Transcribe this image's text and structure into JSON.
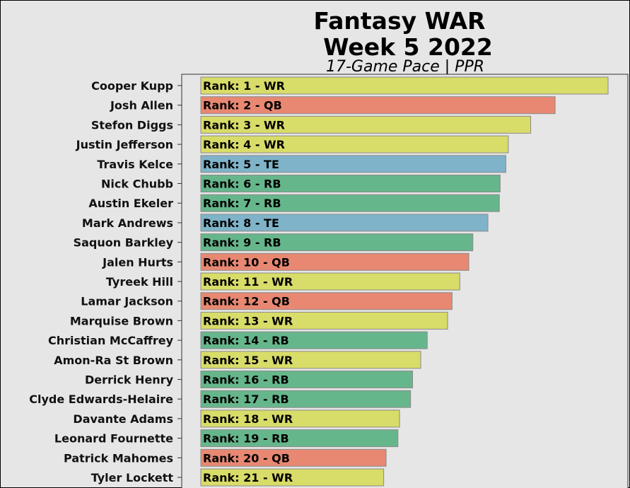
{
  "chart_data": {
    "type": "bar",
    "orientation": "horizontal",
    "title_lines": [
      "Fantasy WAR",
      "Week 5 2022"
    ],
    "subtitle": "17-Game Pace | PPR",
    "xlabel": "",
    "ylabel": "",
    "xlim": [
      0,
      1
    ],
    "grid": false,
    "legend": "none",
    "position_colors": {
      "WR": "#d8dc68",
      "QB": "#e88872",
      "TE": "#7fb3c9",
      "RB": "#66b68c"
    },
    "categories": [
      "Cooper Kupp",
      "Josh Allen",
      "Stefon Diggs",
      "Justin Jefferson",
      "Travis Kelce",
      "Nick Chubb",
      "Austin Ekeler",
      "Mark Andrews",
      "Saquon Barkley",
      "Jalen Hurts",
      "Tyreek Hill",
      "Lamar Jackson",
      "Marquise Brown",
      "Christian McCaffrey",
      "Amon-Ra St Brown",
      "Derrick Henry",
      "Clyde Edwards-Helaire",
      "Davante Adams",
      "Leonard Fournette",
      "Patrick Mahomes",
      "Tyler Lockett"
    ],
    "values": [
      1.0,
      0.87,
      0.81,
      0.755,
      0.749,
      0.735,
      0.733,
      0.705,
      0.668,
      0.658,
      0.636,
      0.617,
      0.606,
      0.556,
      0.54,
      0.52,
      0.515,
      0.488,
      0.484,
      0.455,
      0.449
    ],
    "bar_labels": [
      "Rank: 1 - WR",
      "Rank: 2 - QB",
      "Rank: 3 - WR",
      "Rank: 4 - WR",
      "Rank: 5 - TE",
      "Rank: 6 - RB",
      "Rank: 7 - RB",
      "Rank: 8 - TE",
      "Rank: 9 - RB",
      "Rank: 10 - QB",
      "Rank: 11 - WR",
      "Rank: 12 - QB",
      "Rank: 13 - WR",
      "Rank: 14 - RB",
      "Rank: 15 - WR",
      "Rank: 16 - RB",
      "Rank: 17 - RB",
      "Rank: 18 - WR",
      "Rank: 19 - RB",
      "Rank: 20 - QB",
      "Rank: 21 - WR"
    ],
    "positions": [
      "WR",
      "QB",
      "WR",
      "WR",
      "TE",
      "RB",
      "RB",
      "TE",
      "RB",
      "QB",
      "WR",
      "QB",
      "WR",
      "RB",
      "WR",
      "RB",
      "RB",
      "WR",
      "RB",
      "QB",
      "WR"
    ]
  }
}
